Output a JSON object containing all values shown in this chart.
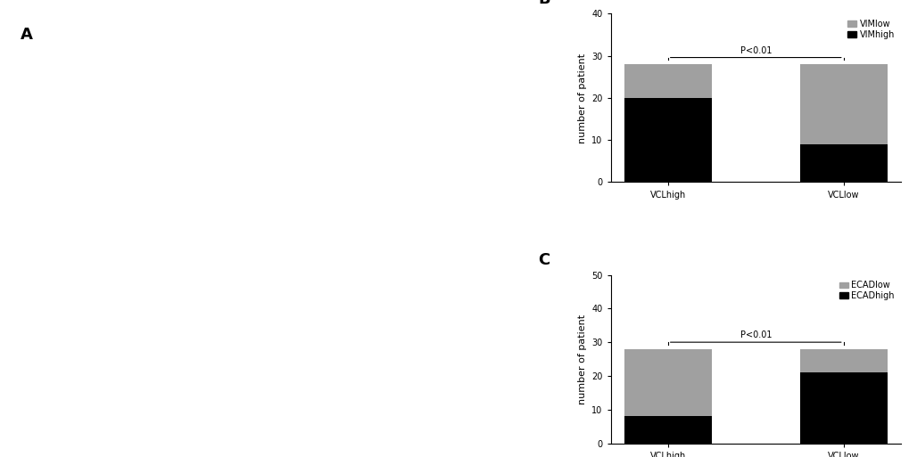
{
  "panel_B": {
    "title": "B",
    "categories": [
      "VCLhigh",
      "VCLlow"
    ],
    "high_values": [
      20,
      9
    ],
    "low_values": [
      8,
      19
    ],
    "legend_high": "VIMhigh",
    "legend_low": "VIMlow",
    "ylabel": "number of patient",
    "ylim": [
      0,
      40
    ],
    "yticks": [
      0,
      10,
      20,
      30,
      40
    ],
    "pvalue_text": "P<0.01",
    "color_high": "#000000",
    "color_low": "#a0a0a0"
  },
  "panel_C": {
    "title": "C",
    "categories": [
      "VCLhigh",
      "VCLlow"
    ],
    "high_values": [
      8,
      21
    ],
    "low_values": [
      20,
      7
    ],
    "legend_high": "ECADhigh",
    "legend_low": "ECADlow",
    "ylabel": "number of patient",
    "ylim": [
      0,
      50
    ],
    "yticks": [
      0,
      10,
      20,
      30,
      40,
      50
    ],
    "pvalue_text": "P<0.01",
    "color_high": "#000000",
    "color_low": "#a0a0a0"
  },
  "panel_A_label": "A",
  "background_color": "#ffffff",
  "bar_width": 0.5,
  "fontsize_label": 8,
  "fontsize_tick": 7,
  "fontsize_title": 13,
  "fontsize_legend": 7,
  "fontsize_pvalue": 7
}
